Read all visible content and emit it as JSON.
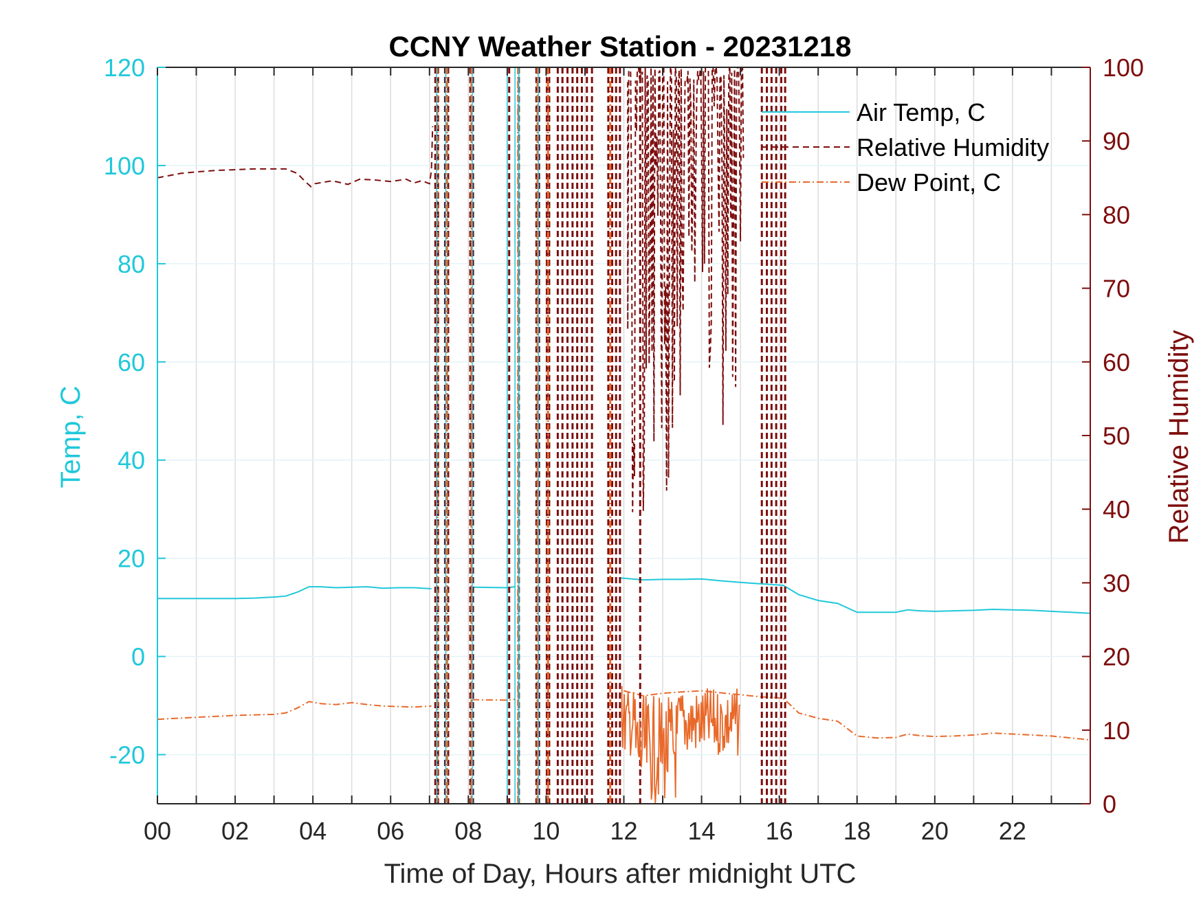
{
  "chart_data": {
    "type": "line",
    "title": "CCNY Weather Station - 20231218",
    "xlabel": "Time of Day, Hours after midnight UTC",
    "ylabel_left": "Temp, C",
    "ylabel_right": "Relative Humidity",
    "xlim": [
      0,
      24
    ],
    "ylim_left": [
      -30,
      120
    ],
    "ylim_right": [
      0,
      100
    ],
    "x_ticks": [
      0,
      2,
      4,
      6,
      8,
      10,
      12,
      14,
      16,
      18,
      20,
      22
    ],
    "x_tick_labels": [
      "00",
      "02",
      "04",
      "06",
      "08",
      "10",
      "12",
      "14",
      "16",
      "18",
      "20",
      "22"
    ],
    "y_left_ticks": [
      -20,
      0,
      20,
      40,
      60,
      80,
      100,
      120
    ],
    "y_left_tick_labels": [
      "-20",
      "0",
      "20",
      "40",
      "60",
      "80",
      "100",
      "120"
    ],
    "y_right_ticks": [
      0,
      10,
      20,
      30,
      40,
      50,
      60,
      70,
      80,
      90,
      100
    ],
    "y_right_tick_labels": [
      "0",
      "10",
      "20",
      "30",
      "40",
      "50",
      "60",
      "70",
      "80",
      "90",
      "100"
    ],
    "grid": true,
    "legend_position": "top-right",
    "colors": {
      "air_temp": "#1fc8da",
      "relative_humidity": "#7d0d0d",
      "dew_point": "#e8692a",
      "axis_left": "#1fc8da",
      "axis_right": "#7d0d0d",
      "grid": "#dcdcdc"
    },
    "series": [
      {
        "name": "Air Temp, C",
        "axis": "left",
        "style": "solid",
        "x": [
          0,
          0.5,
          1,
          1.5,
          2,
          2.5,
          3,
          3.3,
          3.6,
          3.9,
          4.2,
          4.6,
          5,
          5.4,
          5.8,
          6.2,
          6.6,
          7.05,
          8.1,
          9.0,
          9.2,
          11.9,
          12.5,
          13,
          13.5,
          14,
          14.5,
          15,
          15.5,
          16.1,
          16.5,
          17,
          17.5,
          18,
          18.5,
          19,
          19.3,
          19.6,
          20,
          20.5,
          21,
          21.5,
          22,
          22.5,
          23,
          23.5,
          24
        ],
        "values": [
          11.8,
          11.8,
          11.8,
          11.8,
          11.8,
          11.9,
          12.1,
          12.3,
          13.1,
          14.2,
          14.2,
          14.0,
          14.1,
          14.2,
          13.9,
          14.0,
          14.0,
          13.8,
          14.1,
          14.0,
          14.2,
          16.0,
          15.6,
          15.7,
          15.7,
          15.8,
          15.4,
          15.1,
          14.8,
          14.5,
          12.6,
          11.4,
          10.8,
          9.0,
          9.0,
          9.0,
          9.5,
          9.3,
          9.2,
          9.3,
          9.4,
          9.6,
          9.5,
          9.4,
          9.2,
          9.0,
          8.8
        ]
      },
      {
        "name": "Relative Humidity",
        "axis": "right",
        "style": "dashed",
        "x": [
          0,
          0.3,
          0.6,
          1,
          1.5,
          2,
          2.5,
          3,
          3.3,
          3.6,
          3.8,
          3.95,
          4.05,
          4.5,
          4.9,
          5.2,
          5.6,
          6,
          6.4,
          6.6,
          6.8,
          7.0,
          7.05,
          7.08
        ],
        "values": [
          85.0,
          85.3,
          85.6,
          85.8,
          86.0,
          86.1,
          86.2,
          86.2,
          86.2,
          85.6,
          84.5,
          83.8,
          84.2,
          84.6,
          84.1,
          84.8,
          84.7,
          84.5,
          84.8,
          84.3,
          84.6,
          84.2,
          86.0,
          92.0
        ]
      },
      {
        "name": "Dew Point, C",
        "axis": "left",
        "style": "dashdot",
        "x": [
          0,
          0.5,
          1,
          1.5,
          2,
          2.5,
          3,
          3.3,
          3.6,
          3.9,
          4.2,
          4.6,
          5,
          5.4,
          5.8,
          6.2,
          6.6,
          7.05,
          8.1,
          9.0,
          9.2,
          12.0,
          12.5,
          13,
          13.5,
          14,
          14.5,
          15,
          15.5,
          16.1,
          16.5,
          17,
          17.5,
          18,
          18.5,
          19,
          19.3,
          19.6,
          20,
          20.5,
          21,
          21.5,
          22,
          22.5,
          23,
          23.5,
          24
        ],
        "values": [
          -12.8,
          -12.6,
          -12.4,
          -12.2,
          -12.0,
          -11.9,
          -11.8,
          -11.5,
          -10.5,
          -9.2,
          -9.6,
          -9.8,
          -9.4,
          -9.8,
          -10.1,
          -10.2,
          -10.3,
          -10.1,
          -8.8,
          -8.9,
          -8.7,
          -7.0,
          -8.0,
          -7.5,
          -7.2,
          -7.0,
          -7.4,
          -7.8,
          -8.2,
          -8.5,
          -11.5,
          -12.6,
          -13.2,
          -16.2,
          -16.6,
          -16.5,
          -15.8,
          -16.1,
          -16.3,
          -16.2,
          -16.0,
          -15.6,
          -15.8,
          -16.0,
          -16.2,
          -16.6,
          -17.0
        ]
      }
    ]
  }
}
